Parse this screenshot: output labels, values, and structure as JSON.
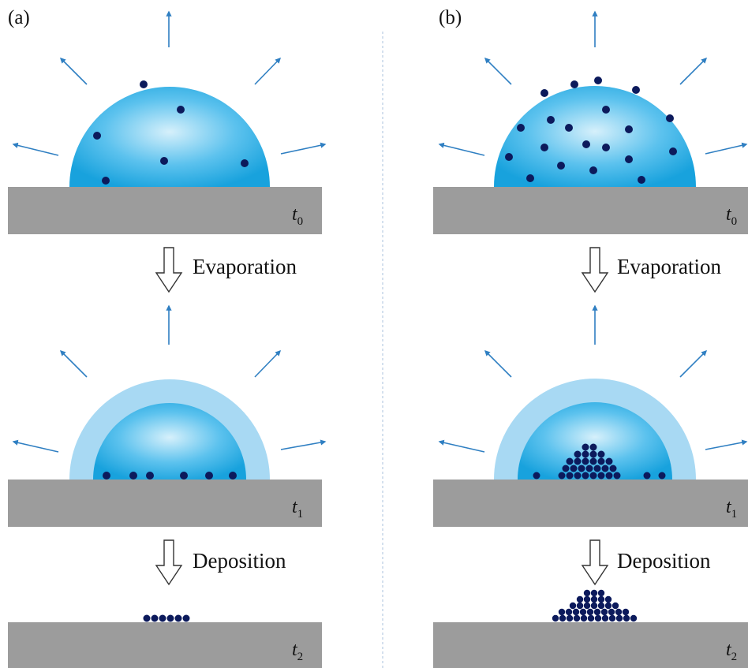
{
  "panels": {
    "a": {
      "label": "(a)",
      "steps": [
        "Evaporation",
        "Deposition"
      ],
      "times": [
        {
          "t": "t",
          "sub": "0"
        },
        {
          "t": "t",
          "sub": "1"
        },
        {
          "t": "t",
          "sub": "2"
        }
      ]
    },
    "b": {
      "label": "(b)",
      "steps": [
        "Evaporation",
        "Deposition"
      ],
      "times": [
        {
          "t": "t",
          "sub": "0"
        },
        {
          "t": "t",
          "sub": "1"
        },
        {
          "t": "t",
          "sub": "2"
        }
      ]
    }
  },
  "colors": {
    "substrate": "#9c9c9c",
    "droplet_center": "#d6f0fb",
    "droplet_edge": "#1aa6e0",
    "shrunk_halo": "#a8d9f3",
    "particle": "#0c1a5c",
    "arrow": "#2f7fc2",
    "divider": "#b8cbe2"
  },
  "icons": [
    "down-arrow-icon",
    "evaporation-arrow-icon",
    "particle-dot"
  ]
}
